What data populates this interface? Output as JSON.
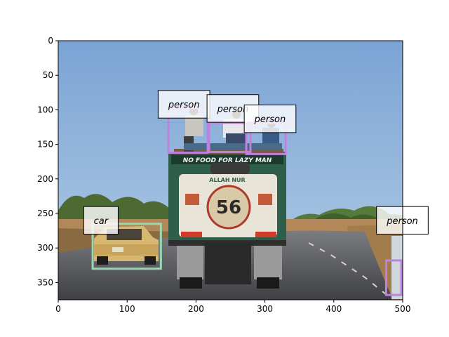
{
  "image": {
    "width": 500,
    "height": 375,
    "description": "Colorful truck driving away on a rural road with people seated on its roof; a yellow car on the left; a person at the right edge."
  },
  "axes": {
    "x_ticks": [
      "0",
      "100",
      "200",
      "300",
      "400",
      "500"
    ],
    "y_ticks": [
      "0",
      "50",
      "100",
      "150",
      "200",
      "250",
      "300",
      "350"
    ],
    "xlim": [
      0,
      500
    ],
    "ylim": [
      375,
      0
    ]
  },
  "truck": {
    "back_text": "NO FOOD FOR LAZY MAN",
    "top_text": "ALLAH NUR",
    "number": "56"
  },
  "detections": [
    {
      "label": "person",
      "color": "#c080e0"
    },
    {
      "label": "person",
      "color": "#c080e0"
    },
    {
      "label": "person",
      "color": "#c080e0"
    },
    {
      "label": "car",
      "color": "#98d8b0"
    },
    {
      "label": "person",
      "color": "#c080e0"
    }
  ]
}
